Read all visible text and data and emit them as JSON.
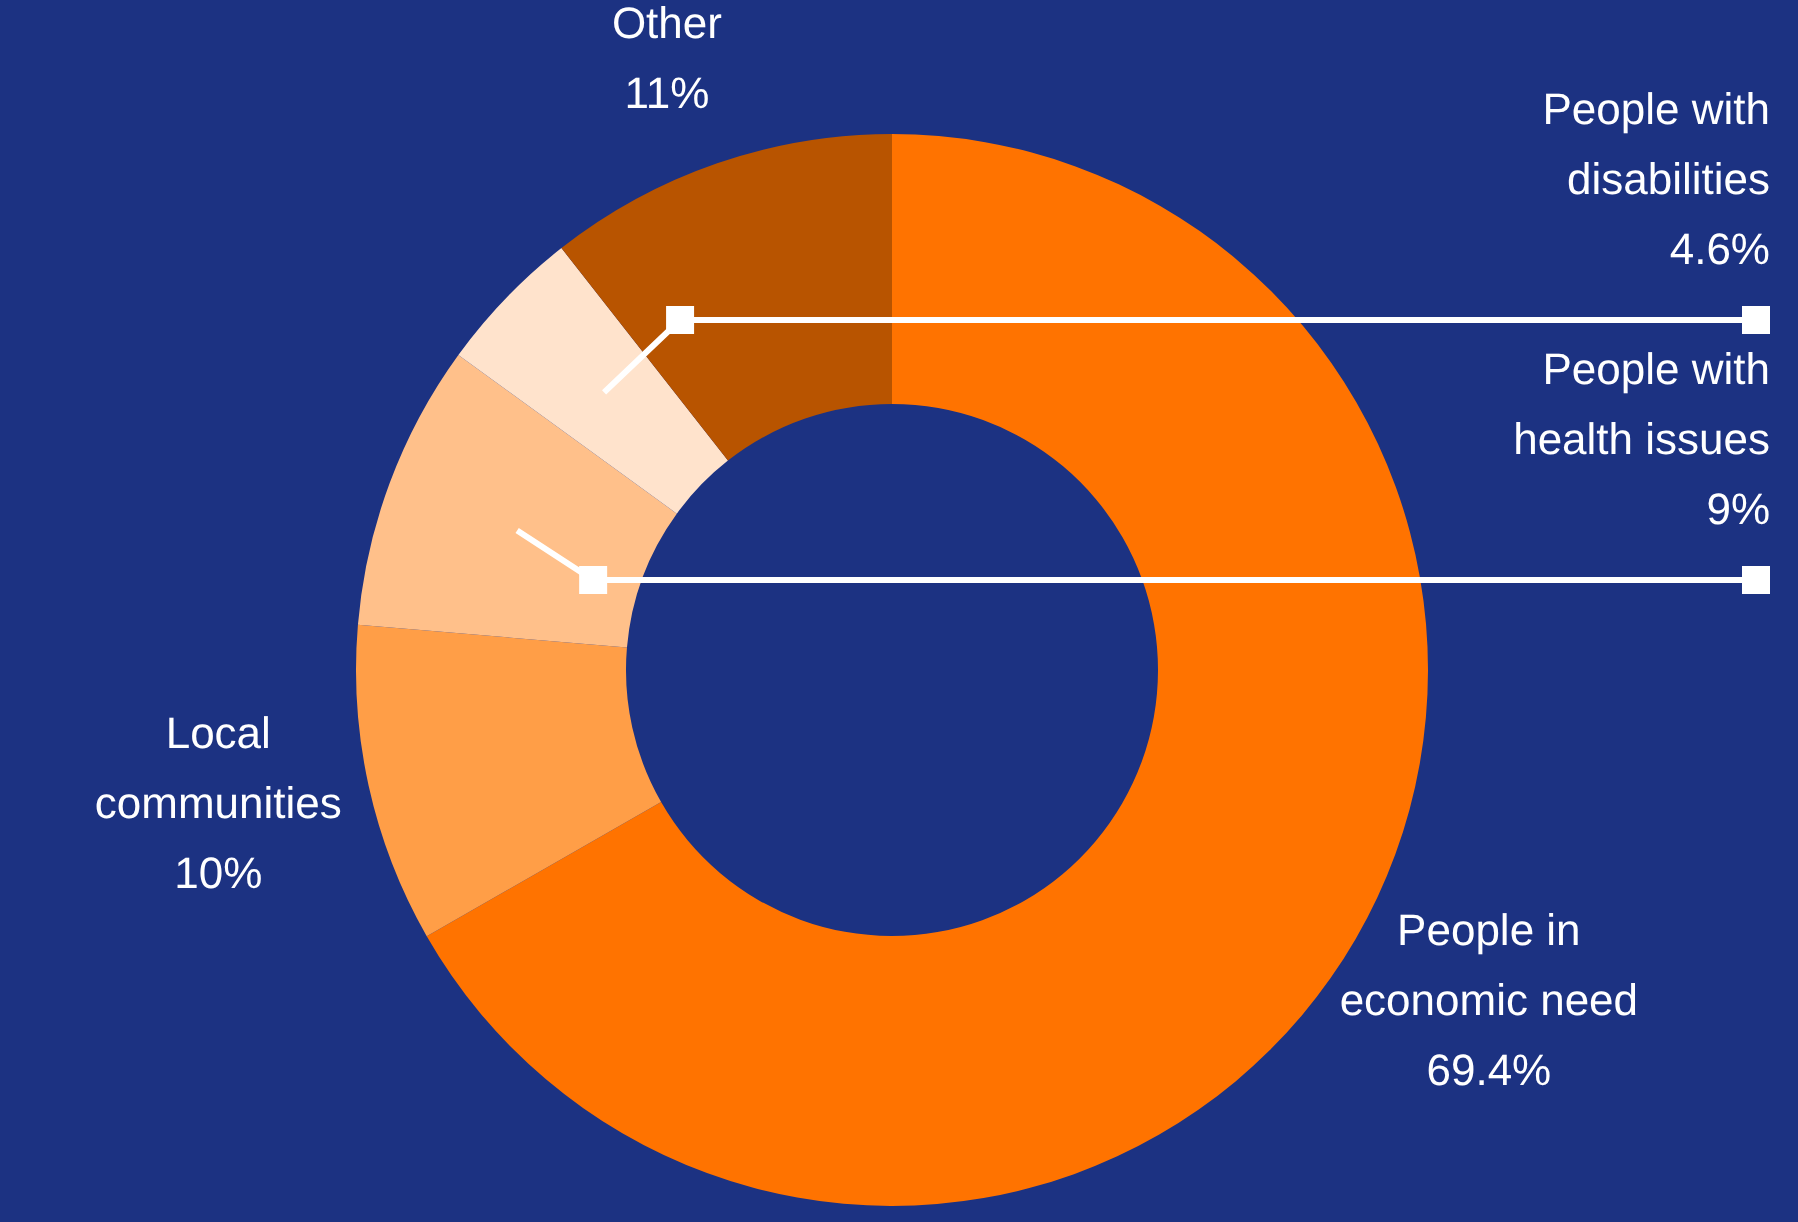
{
  "chart_data": {
    "type": "donut",
    "categories": [
      "People in economic need",
      "Local communities",
      "People with health issues",
      "People with disabilities",
      "Other"
    ],
    "values": [
      69.4,
      10,
      9,
      4.6,
      11
    ],
    "value_labels": [
      "69.4%",
      "10%",
      "9%",
      "4.6%",
      "11%"
    ],
    "colors": [
      "#ff7300",
      "#ff9e47",
      "#ffc08a",
      "#ffe3cc",
      "#b85400"
    ]
  }
}
